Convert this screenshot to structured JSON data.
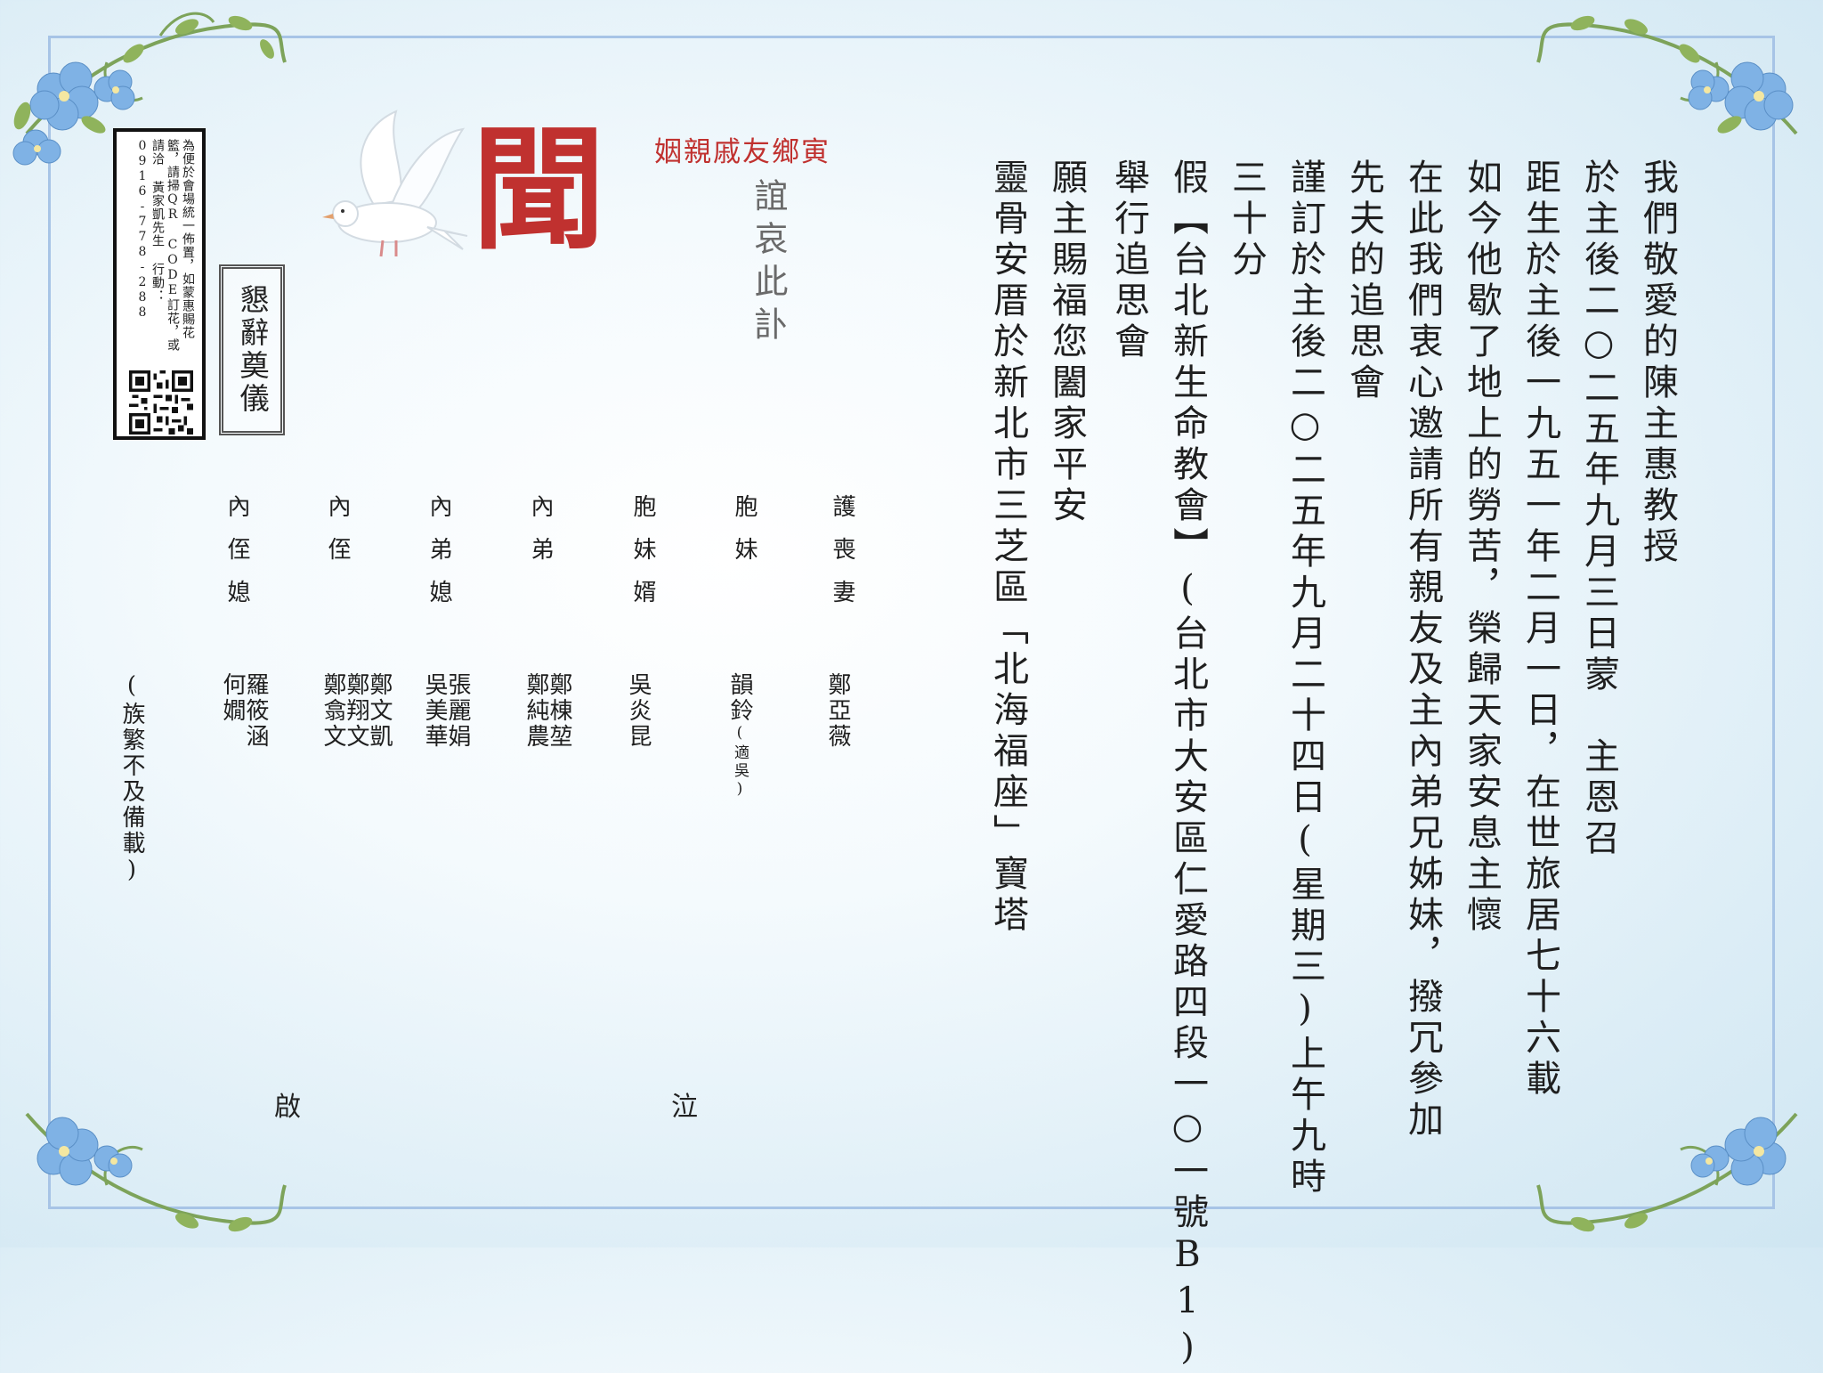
{
  "card": {
    "main_lines": [
      "我們敬愛的陳主惠教授",
      "於主後二○二五年九月三日蒙　主恩召",
      "距生於主後一九五一年二月一日，在世旅居七十六載",
      "如今他歇了地上的勞苦，榮歸天家安息主懷",
      "在此我們衷心邀請所有親友及主內弟兄姊妹，撥冗參加",
      "先夫的追思會",
      "謹訂於主後二○二五年九月二十四日(星期三)上午九時",
      "三十分",
      "假【台北新生命教會】(台北市大安區仁愛路四段一○一號B1)",
      "舉行追思會",
      "願主賜福您闔家平安",
      "靈骨安厝於新北市三芝區「北海福座」寶塔"
    ],
    "title_char": "聞",
    "relatives_line": "姻親戚友鄉寅",
    "sad_notice": "誼哀此訃",
    "decline_label": "懇辭奠儀",
    "qr_notice": "為便於會場統一佈置，如蒙惠賜花籃，請掃QR CODE訂花，或請洽 黃家凱先生 行動：0916-778-288",
    "qr_icon": "qr-code-icon",
    "family": [
      {
        "relation": "護喪妻",
        "names": [
          "鄭亞薇"
        ]
      },
      {
        "relation": "胞妹",
        "names": [
          "韻鈴"
        ],
        "note": "(適吳)"
      },
      {
        "relation": "胞妹婿",
        "names": [
          "吳炎昆"
        ]
      },
      {
        "relation": "內弟",
        "names": [
          "鄭棟堃",
          "鄭純農"
        ]
      },
      {
        "relation": "內弟媳",
        "names": [
          "張麗娟",
          "吳美華"
        ]
      },
      {
        "relation": "內侄",
        "names": [
          "鄭文凱",
          "鄭翔文",
          "鄭翕文"
        ]
      },
      {
        "relation": "內侄媳",
        "names": [
          "羅筱涵",
          "何嫺"
        ]
      }
    ],
    "family_note": "(族繁不及備載)",
    "sign_weep": "泣",
    "sign_announce": "啟",
    "colors": {
      "accent_red": "#c0312f",
      "border_blue": "#a7c4e6",
      "flower_blue": "#7fb2e5"
    }
  }
}
